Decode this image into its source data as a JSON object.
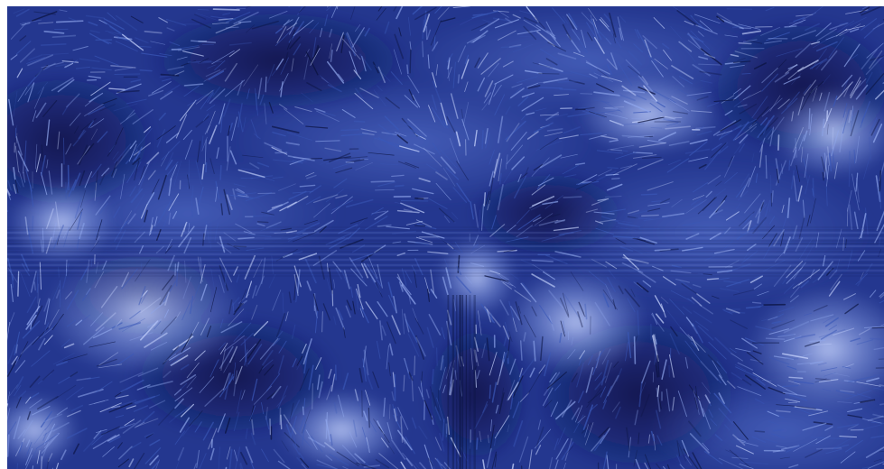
{
  "image": {
    "subject": "abstract-fur-texture",
    "palette": {
      "base": "#24378f",
      "deep": "#0b1340",
      "mid": "#3a58b8",
      "light": "#8fa6ec",
      "highlight": "#c9d6ff"
    }
  }
}
